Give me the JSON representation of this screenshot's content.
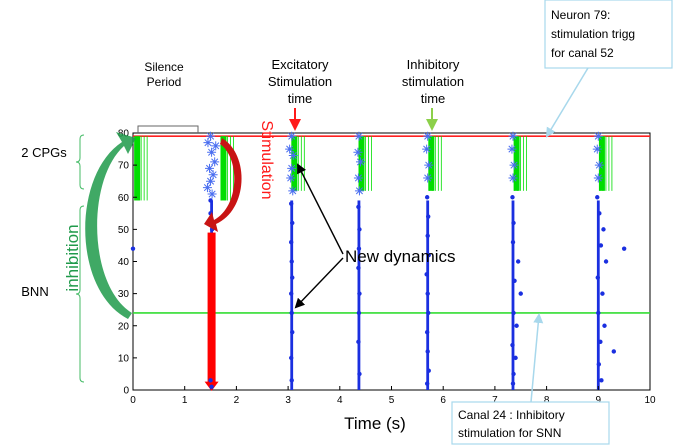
{
  "chart_data": {
    "type": "scatter",
    "title": "",
    "xlabel": "Time (s)",
    "ylabel": "",
    "xlim": [
      0,
      10
    ],
    "ylim": [
      0,
      80
    ],
    "xticks": [
      0,
      1,
      2,
      3,
      4,
      5,
      6,
      7,
      8,
      9,
      10
    ],
    "yticks": [
      0,
      10,
      20,
      30,
      40,
      50,
      60,
      70,
      80
    ],
    "grid": false,
    "reference_lines": [
      {
        "name": "Neuron 79",
        "y": 79,
        "color": "#ff2020"
      },
      {
        "name": "Canal 24",
        "y": 24,
        "color": "#33dd33"
      }
    ],
    "stimulation_bar": {
      "x": 1.52,
      "y_from": 49,
      "y_to": 2,
      "color": "#ff0000"
    },
    "burst_times": [
      1.52,
      3.07,
      4.37,
      5.7,
      7.35,
      9.0
    ],
    "cpg_range": [
      59,
      79
    ],
    "series": [
      {
        "marker": "star",
        "color": "#4a6ef0",
        "x": [
          1.5,
          1.45,
          1.52,
          1.58,
          1.48,
          1.55,
          1.5,
          1.44,
          1.53,
          1.6,
          3.07,
          3.03,
          3.1,
          3.07,
          3.05,
          3.09,
          4.37,
          4.35,
          4.4,
          4.36,
          4.38,
          5.7,
          5.68,
          5.72,
          5.7,
          7.35,
          7.33,
          7.37,
          7.35,
          9.0,
          8.98,
          9.02,
          9.0
        ],
        "y": [
          79,
          77,
          74,
          71,
          69,
          67,
          65,
          63,
          61,
          76,
          79,
          75,
          73,
          69,
          66,
          62,
          79,
          74,
          71,
          66,
          62,
          79,
          75,
          70,
          66,
          79,
          75,
          70,
          66,
          79,
          75,
          70,
          66
        ]
      },
      {
        "marker": "dot",
        "color": "#1a2fe0",
        "x": [
          1.5,
          1.5,
          1.48,
          1.53,
          1.5,
          1.52,
          3.06,
          3.08,
          3.06,
          3.07,
          3.08,
          3.06,
          3.07,
          3.08,
          3.06,
          3.07,
          4.36,
          4.38,
          4.37,
          4.36,
          4.38,
          4.37,
          4.36,
          4.38,
          5.69,
          5.71,
          5.7,
          5.72,
          5.68,
          5.7,
          5.71,
          5.69,
          5.7,
          5.72,
          5.69,
          7.34,
          7.36,
          7.35,
          7.45,
          7.38,
          7.5,
          7.36,
          7.42,
          7.34,
          7.4,
          7.36,
          7.35,
          8.98,
          9.02,
          9.1,
          9.05,
          9.15,
          8.99,
          9.08,
          9.0,
          9.12,
          9.04,
          9.3,
          9.01,
          9.06,
          0.0,
          9.5
        ],
        "y": [
          59,
          55,
          52,
          50,
          3,
          1,
          58,
          52,
          46,
          40,
          35,
          30,
          24,
          18,
          10,
          3,
          57,
          50,
          44,
          38,
          30,
          24,
          15,
          5,
          60,
          54,
          48,
          42,
          36,
          30,
          24,
          18,
          12,
          6,
          2,
          60,
          52,
          46,
          40,
          34,
          30,
          24,
          20,
          14,
          10,
          5,
          2,
          60,
          55,
          50,
          45,
          40,
          35,
          30,
          24,
          20,
          15,
          12,
          8,
          3,
          44,
          44
        ]
      },
      {
        "marker": "bar",
        "color": "#00dd00",
        "x": [
          0.08,
          1.75,
          3.12,
          4.42,
          5.77,
          7.42,
          9.07
        ],
        "y_from": [
          59,
          59,
          62,
          62,
          62,
          62,
          62
        ],
        "y_to": [
          79,
          79,
          79,
          79,
          79,
          79,
          79
        ]
      }
    ]
  },
  "annotations": {
    "silence_period": [
      "Silence",
      "Period"
    ],
    "excitatory": [
      "Excitatory",
      "Stimulation",
      "time"
    ],
    "inhibitory": [
      "Inhibitory",
      "stimulation",
      "time"
    ],
    "neuron79": [
      "Neuron 79:",
      "stimulation trigg",
      "for canal 52"
    ],
    "canal24": [
      "Canal 24 : Inhibitory",
      "stimulation for SNN"
    ],
    "new_dynamics": "New dynamics",
    "cpgs": "2 CPGs",
    "bnn": "BNN",
    "inhibition": "inhibition",
    "stimulation": "Stimulation"
  },
  "colors": {
    "dots": "#1a2fe0",
    "stars": "#4a6ef0",
    "green": "#00dd00",
    "red": "#ff1a1a",
    "callout_border": "#a8d8ec",
    "arrow_green": "#1f9a4a"
  }
}
